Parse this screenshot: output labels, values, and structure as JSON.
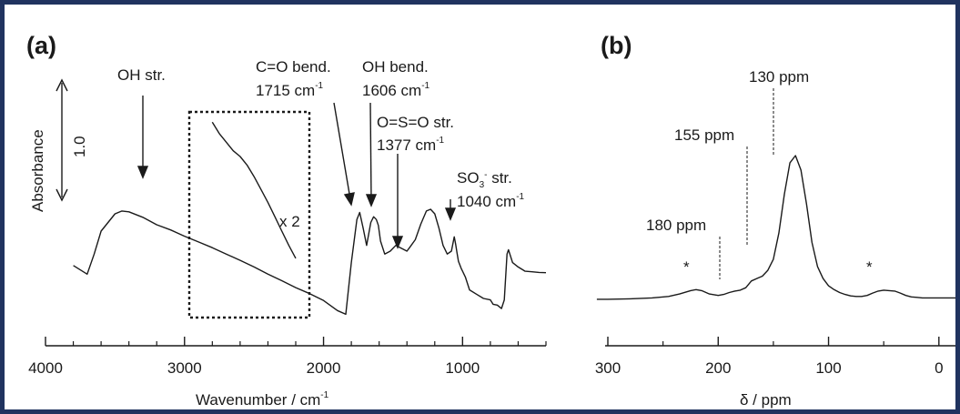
{
  "colors": {
    "border": "#20335f",
    "line": "#1a1a1a",
    "background": "#ffffff"
  },
  "panel_a": {
    "letter": "(a)",
    "x_label": "Wavenumber / cm",
    "x_label_sup": "-1",
    "y_label": "Absorbance",
    "scale_bar_label": "1.0",
    "inset_label": "x 2",
    "annotations": {
      "oh_str": "OH str.",
      "co_bend": "C=O bend.",
      "co_value": "1715 cm",
      "oh_bend": "OH bend.",
      "oh_value": "1606 cm",
      "oso_str": "O=S=O str.",
      "oso_value": "1377 cm",
      "so3_prefix": "SO",
      "so3_sub": "3",
      "so3_sup": "-",
      "so3_suffix": " str.",
      "so3_value": "1040 cm",
      "unit_sup": "-1"
    }
  },
  "panel_b": {
    "letter": "(b)",
    "x_label": "δ / ppm",
    "peak_130": "130 ppm",
    "peak_155": "155 ppm",
    "peak_180": "180 ppm",
    "sideband_marker": "*"
  },
  "chart_data": [
    {
      "type": "line",
      "panel": "(a)",
      "xlabel": "Wavenumber / cm-1",
      "ylabel": "Absorbance",
      "x_reversed": true,
      "xlim": [
        4000,
        400
      ],
      "x_ticks": [
        4000,
        3000,
        2000,
        1000
      ],
      "y_units": "arbitrary (scale bar 1.0)",
      "series": [
        {
          "x": [
            3800,
            3700,
            3650,
            3600,
            3500,
            3450,
            3400,
            3300,
            3200,
            3100,
            3000,
            2900,
            2800,
            2700,
            2600,
            2500,
            2400,
            2300,
            2200,
            2100,
            2000,
            1900,
            1840,
            1800,
            1760,
            1740,
            1715,
            1690,
            1660,
            1640,
            1620,
            1606,
            1590,
            1560,
            1520,
            1480,
            1440,
            1400,
            1377,
            1340,
            1300,
            1260,
            1230,
            1200,
            1170,
            1140,
            1110,
            1080,
            1060,
            1050,
            1040,
            1030,
            1010,
            980,
            950,
            900,
            850,
            800,
            780,
            750,
            720,
            700,
            690,
            680,
            670,
            660,
            640,
            600,
            550,
            500,
            450,
            400
          ],
          "y": [
            2.1,
            1.8,
            2.5,
            3.3,
            3.9,
            4.0,
            3.97,
            3.78,
            3.52,
            3.34,
            3.12,
            2.92,
            2.72,
            2.5,
            2.28,
            2.05,
            1.8,
            1.57,
            1.33,
            1.12,
            0.88,
            0.53,
            0.4,
            2.2,
            3.7,
            3.95,
            3.4,
            2.8,
            3.6,
            3.8,
            3.7,
            3.5,
            2.95,
            2.5,
            2.6,
            2.8,
            2.7,
            2.6,
            2.75,
            3.0,
            3.55,
            4.0,
            4.06,
            3.9,
            3.4,
            2.8,
            2.5,
            2.6,
            3.1,
            2.85,
            2.55,
            2.25,
            2.0,
            1.7,
            1.25,
            1.1,
            0.95,
            0.9,
            0.75,
            0.72,
            0.6,
            0.9,
            1.7,
            2.5,
            2.65,
            2.5,
            2.2,
            2.05,
            1.9,
            1.88,
            1.86,
            1.85
          ]
        },
        {
          "name": "x 2",
          "x": [
            2800,
            2750,
            2700,
            2650,
            2600,
            2550,
            2500,
            2450,
            2400,
            2350,
            2300,
            2250,
            2200
          ],
          "y": [
            7.1,
            6.7,
            6.4,
            6.1,
            5.9,
            5.6,
            5.2,
            4.75,
            4.3,
            3.8,
            3.3,
            2.8,
            2.35
          ]
        }
      ],
      "annotations": [
        {
          "label": "OH str.",
          "x": 3300
        },
        {
          "label": "C=O bend. 1715 cm-1",
          "x": 1715
        },
        {
          "label": "OH bend. 1606 cm-1",
          "x": 1606
        },
        {
          "label": "O=S=O str. 1377 cm-1",
          "x": 1377
        },
        {
          "label": "SO3- str. 1040 cm-1",
          "x": 1040
        }
      ],
      "inset_box": {
        "x": [
          2900,
          2060
        ],
        "label": "x 2"
      }
    },
    {
      "type": "line",
      "panel": "(b)",
      "xlabel": "δ / ppm",
      "x_reversed": true,
      "xlim": [
        300,
        -15
      ],
      "x_ticks": [
        300,
        200,
        100,
        0
      ],
      "series": [
        {
          "x": [
            310,
            300,
            280,
            260,
            245,
            235,
            225,
            220,
            215,
            208,
            200,
            195,
            190,
            185,
            180,
            175,
            170,
            165,
            160,
            155,
            150,
            145,
            140,
            135,
            130,
            125,
            120,
            115,
            110,
            105,
            100,
            95,
            90,
            85,
            80,
            75,
            70,
            65,
            60,
            55,
            50,
            45,
            40,
            35,
            30,
            25,
            20,
            15,
            10,
            5,
            0,
            -5,
            -10,
            -15
          ],
          "y": [
            0.02,
            0.02,
            0.03,
            0.05,
            0.08,
            0.13,
            0.2,
            0.22,
            0.2,
            0.13,
            0.1,
            0.12,
            0.16,
            0.19,
            0.21,
            0.26,
            0.4,
            0.45,
            0.5,
            0.62,
            0.85,
            1.4,
            2.2,
            2.85,
            3.0,
            2.7,
            2.0,
            1.2,
            0.7,
            0.45,
            0.3,
            0.22,
            0.16,
            0.12,
            0.09,
            0.08,
            0.08,
            0.1,
            0.15,
            0.19,
            0.21,
            0.2,
            0.19,
            0.15,
            0.1,
            0.07,
            0.06,
            0.05,
            0.05,
            0.05,
            0.05,
            0.05,
            0.05,
            0.05
          ]
        }
      ],
      "annotations": [
        {
          "label": "130 ppm",
          "x": 130
        },
        {
          "label": "155 ppm",
          "x": 155
        },
        {
          "label": "180 ppm",
          "x": 186
        },
        {
          "label": "*",
          "x": 220
        },
        {
          "label": "*",
          "x": 40
        }
      ]
    }
  ]
}
